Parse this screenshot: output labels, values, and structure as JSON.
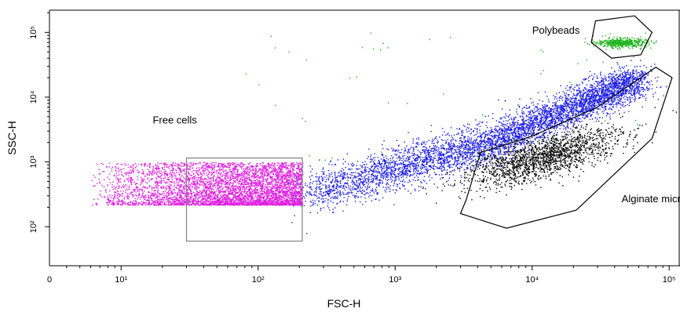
{
  "chart_data": {
    "type": "scatter",
    "title": "",
    "xlabel": "FSC-H",
    "ylabel": "SSC-H",
    "x_scale": "log",
    "y_scale": "log",
    "xlim": [
      3,
      120000
    ],
    "ylim": [
      25,
      220000
    ],
    "x_ticks": [
      {
        "value": 3,
        "label": "0"
      },
      {
        "value": 10,
        "label": "10¹"
      },
      {
        "value": 100,
        "label": "10²"
      },
      {
        "value": 1000,
        "label": "10³"
      },
      {
        "value": 10000,
        "label": "10⁴"
      },
      {
        "value": 100000,
        "label": "10⁵"
      }
    ],
    "y_ticks": [
      {
        "value": 100,
        "label": "10²"
      },
      {
        "value": 1000,
        "label": "10³"
      },
      {
        "value": 10000,
        "label": "10⁴"
      },
      {
        "value": 100000,
        "label": "10⁵"
      }
    ],
    "grid": false,
    "legend": "none",
    "populations": [
      {
        "label": "Free cells",
        "color": "#e020e0",
        "x_range": [
          6,
          210
        ],
        "y_range": [
          220,
          1000
        ],
        "density": "high"
      },
      {
        "label": "",
        "color": "#1a1ae6",
        "trend": [
          [
            210,
            300
          ],
          [
            1000,
            800
          ],
          [
            5000,
            2000
          ],
          [
            20000,
            7000
          ],
          [
            60000,
            20000
          ]
        ],
        "density": "high"
      },
      {
        "label": "Alginate microbeads",
        "color": "#000000",
        "centroid": [
          12000,
          1200
        ],
        "density": "medium"
      },
      {
        "label": "Polybeads",
        "color": "#22b422",
        "centroid": [
          45000,
          70000
        ],
        "density": "medium"
      }
    ],
    "annotations": [
      {
        "text": "Free cells",
        "x": 17,
        "y": 3900
      },
      {
        "text": "Polybeads",
        "x": 10000,
        "y": 95000
      },
      {
        "text": "Alginate microbeads",
        "x": 45000,
        "y": 240
      }
    ],
    "gates": [
      {
        "name": "free-cells-gate",
        "shape": "rectangle",
        "x": [
          30,
          210
        ],
        "y": [
          60,
          1150
        ],
        "color": "#808080"
      },
      {
        "name": "alginate-gate",
        "shape": "polygon",
        "color": "#000000",
        "points": [
          [
            3000,
            160
          ],
          [
            6500,
            95
          ],
          [
            21000,
            180
          ],
          [
            75000,
            2300
          ],
          [
            105000,
            20000
          ],
          [
            80000,
            29000
          ],
          [
            30000,
            7000
          ],
          [
            10000,
            2500
          ],
          [
            4200,
            1400
          ],
          [
            3300,
            260
          ]
        ]
      },
      {
        "name": "polybeads-gate",
        "shape": "polygon",
        "color": "#000000",
        "points": [
          [
            29000,
            150000
          ],
          [
            56000,
            180000
          ],
          [
            75000,
            100000
          ],
          [
            62000,
            45000
          ],
          [
            38000,
            40000
          ],
          [
            27000,
            70000
          ]
        ]
      }
    ]
  }
}
